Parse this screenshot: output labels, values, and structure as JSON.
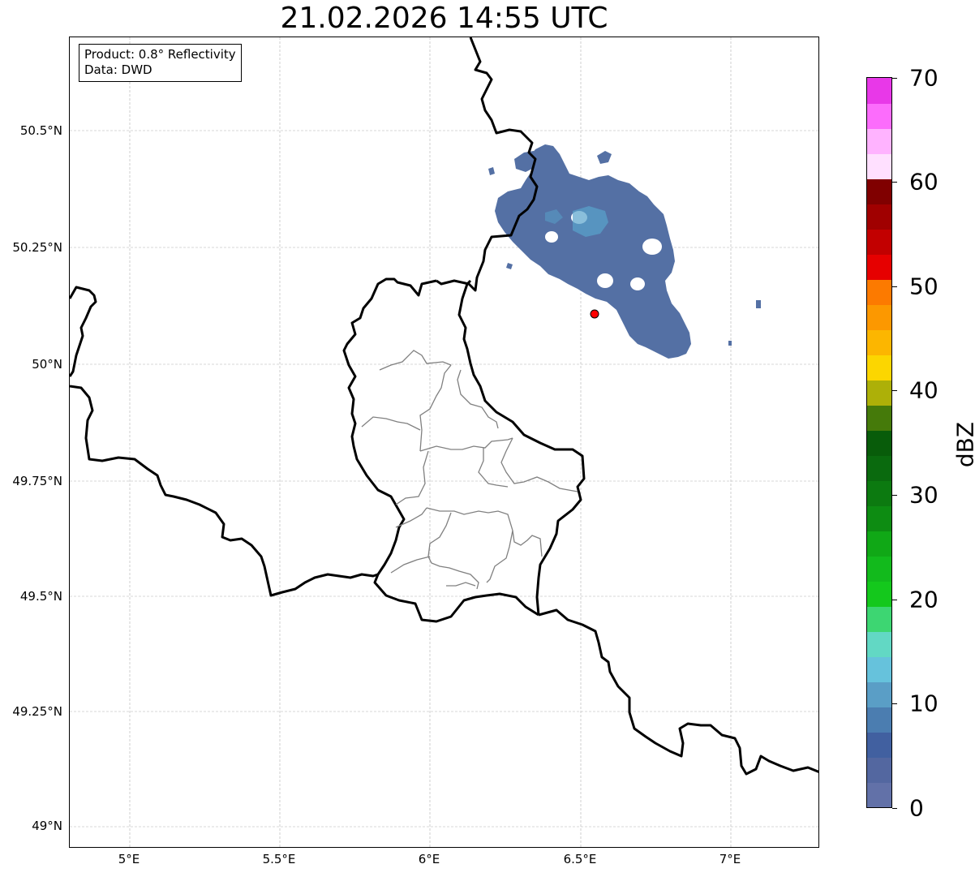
{
  "title": "21.02.2026 14:55 UTC",
  "info": {
    "product": "Product: 0.8° Reflectivity",
    "data": "Data: DWD"
  },
  "lat_ticks": [
    "50.5°N",
    "50.25°N",
    "50°N",
    "49.75°N",
    "49.5°N",
    "49.25°N",
    "49°N"
  ],
  "lon_ticks": [
    "5°E",
    "5.5°E",
    "6°E",
    "6.5°E",
    "7°E"
  ],
  "colorbar": {
    "label": "dBZ",
    "ticks": [
      "0",
      "10",
      "20",
      "30",
      "40",
      "50",
      "60",
      "70"
    ],
    "colors": [
      "#6271a8",
      "#5367a0",
      "#4160a0",
      "#4b7db0",
      "#5a9ec6",
      "#66c2dc",
      "#62d8c4",
      "#3dd672",
      "#14c81c",
      "#12ba1c",
      "#10a816",
      "#0d8c12",
      "#0c7a10",
      "#0a6a0e",
      "#085c0a",
      "#457a0a",
      "#adb008",
      "#fcd600",
      "#fcb600",
      "#fc9800",
      "#fc7a00",
      "#e60000",
      "#c20000",
      "#a00000",
      "#800000",
      "#ffe0ff",
      "#ffb3ff",
      "#fc6cfc",
      "#e838e8"
    ]
  },
  "marker": {
    "label": "radar-site",
    "lon": 6.55,
    "lat": 50.11,
    "color": "#ff0000"
  },
  "colors": {
    "border": "#000000",
    "admin": "#808080",
    "grid": "#b0b0b0",
    "echo_main": "#5470a4",
    "echo_light": "#58a4cc"
  }
}
